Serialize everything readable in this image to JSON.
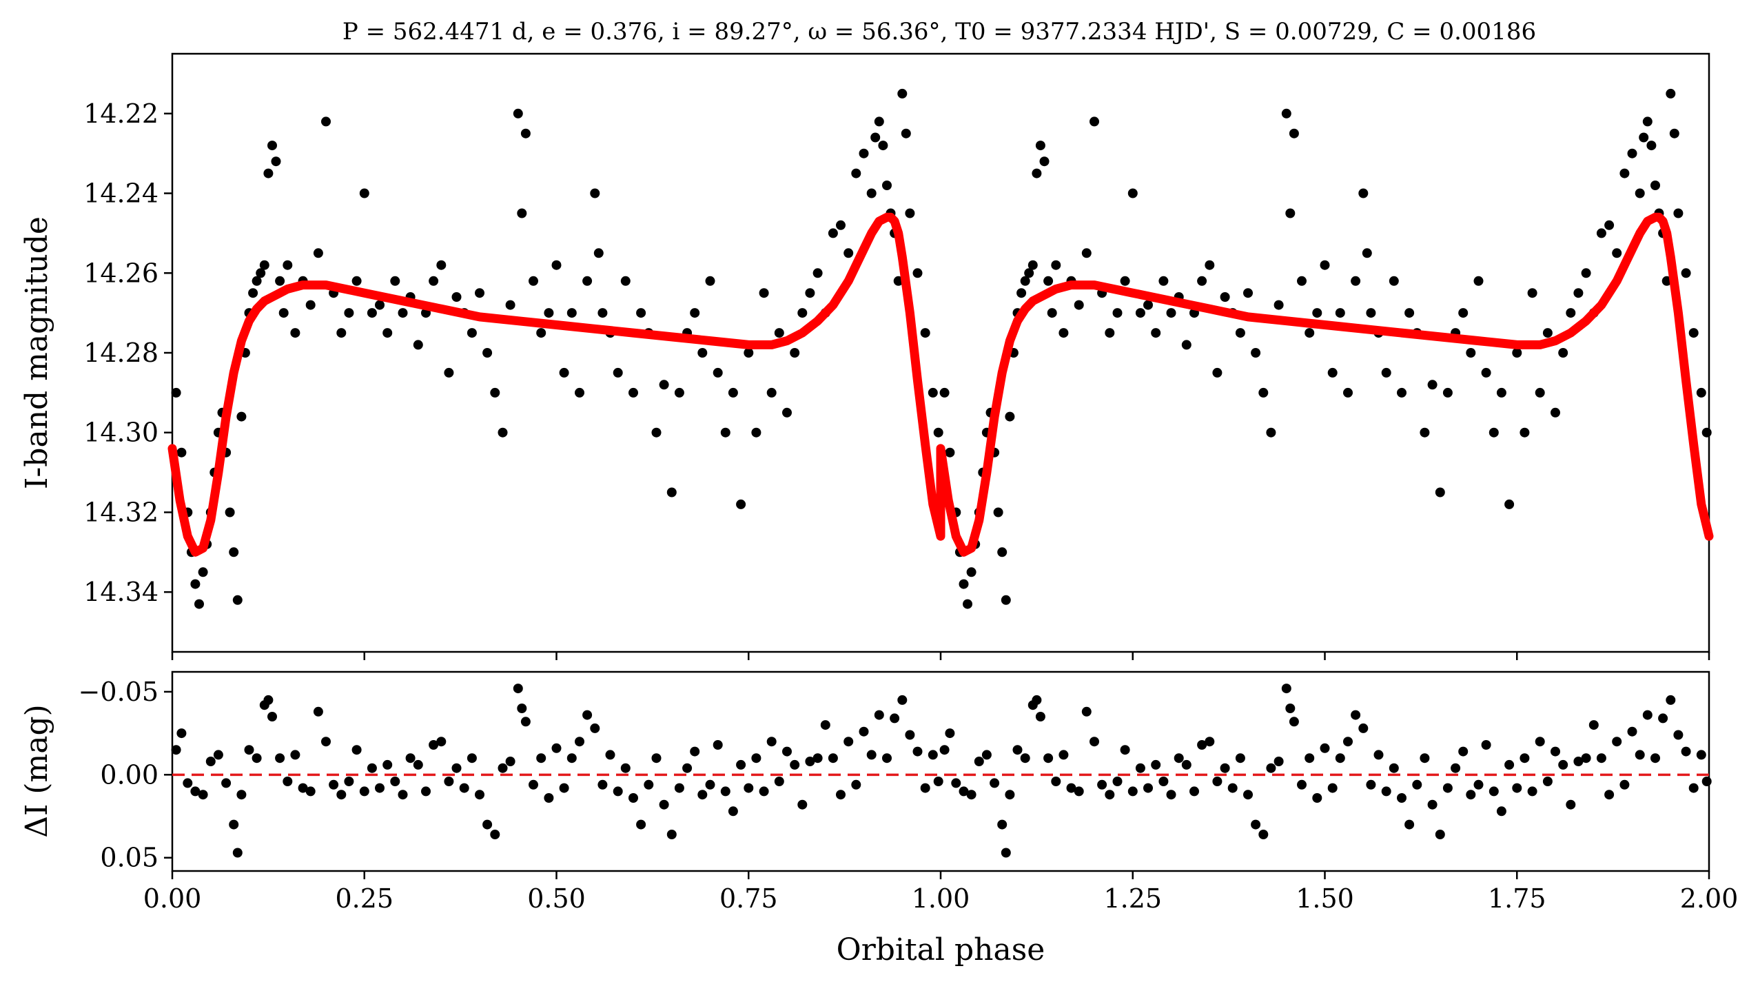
{
  "chart_data": [
    {
      "panel": "light curve",
      "type": "scatter",
      "title": "P = 562.4471 d, e = 0.376, i = 89.27°, ω = 56.36°, T0 = 9377.2334 HJD', S = 0.00729, C = 0.00186",
      "ylabel": "I-band magnitude",
      "xlim": [
        0,
        2
      ],
      "ylim": [
        14.355,
        14.205
      ],
      "y_inverted": true,
      "y_ticks": [
        14.22,
        14.24,
        14.26,
        14.28,
        14.3,
        14.32,
        14.34
      ],
      "y_tick_labels": [
        "14.22",
        "14.24",
        "14.26",
        "14.28",
        "14.30",
        "14.32",
        "14.34"
      ],
      "x_ticks": [
        0,
        0.25,
        0.5,
        0.75,
        1.0,
        1.25,
        1.5,
        1.75,
        2.0
      ],
      "series": [
        {
          "style": "points",
          "color": "#000000",
          "x": [
            0.005,
            0.012,
            0.02,
            0.025,
            0.03,
            0.035,
            0.04,
            0.045,
            0.05,
            0.055,
            0.06,
            0.065,
            0.07,
            0.075,
            0.08,
            0.085,
            0.09,
            0.095,
            0.1,
            0.105,
            0.11,
            0.115,
            0.12,
            0.125,
            0.13,
            0.135,
            0.14,
            0.145,
            0.15,
            0.16,
            0.17,
            0.18,
            0.19,
            0.2,
            0.21,
            0.22,
            0.23,
            0.24,
            0.25,
            0.26,
            0.27,
            0.28,
            0.29,
            0.3,
            0.31,
            0.32,
            0.33,
            0.34,
            0.35,
            0.36,
            0.37,
            0.38,
            0.39,
            0.4,
            0.41,
            0.42,
            0.43,
            0.44,
            0.45,
            0.455,
            0.46,
            0.47,
            0.48,
            0.49,
            0.5,
            0.51,
            0.52,
            0.53,
            0.54,
            0.55,
            0.555,
            0.56,
            0.57,
            0.58,
            0.59,
            0.6,
            0.61,
            0.62,
            0.63,
            0.64,
            0.65,
            0.66,
            0.67,
            0.68,
            0.69,
            0.7,
            0.71,
            0.72,
            0.73,
            0.74,
            0.75,
            0.76,
            0.77,
            0.78,
            0.79,
            0.8,
            0.81,
            0.82,
            0.83,
            0.84,
            0.85,
            0.86,
            0.87,
            0.88,
            0.89,
            0.9,
            0.91,
            0.915,
            0.92,
            0.925,
            0.93,
            0.935,
            0.94,
            0.945,
            0.95,
            0.955,
            0.96,
            0.97,
            0.98,
            0.99,
            0.997
          ],
          "y": [
            14.29,
            14.305,
            14.32,
            14.33,
            14.338,
            14.343,
            14.335,
            14.328,
            14.32,
            14.31,
            14.3,
            14.295,
            14.305,
            14.32,
            14.33,
            14.342,
            14.296,
            14.28,
            14.27,
            14.265,
            14.262,
            14.26,
            14.258,
            14.235,
            14.228,
            14.232,
            14.262,
            14.27,
            14.258,
            14.275,
            14.262,
            14.268,
            14.255,
            14.222,
            14.265,
            14.275,
            14.27,
            14.262,
            14.24,
            14.27,
            14.268,
            14.275,
            14.262,
            14.27,
            14.266,
            14.278,
            14.27,
            14.262,
            14.258,
            14.285,
            14.266,
            14.27,
            14.275,
            14.265,
            14.28,
            14.29,
            14.3,
            14.268,
            14.22,
            14.245,
            14.225,
            14.262,
            14.275,
            14.27,
            14.258,
            14.285,
            14.27,
            14.29,
            14.262,
            14.24,
            14.255,
            14.27,
            14.275,
            14.285,
            14.262,
            14.29,
            14.27,
            14.275,
            14.3,
            14.288,
            14.315,
            14.29,
            14.275,
            14.27,
            14.28,
            14.262,
            14.285,
            14.3,
            14.29,
            14.318,
            14.28,
            14.3,
            14.265,
            14.29,
            14.275,
            14.295,
            14.28,
            14.27,
            14.265,
            14.26,
            14.27,
            14.25,
            14.248,
            14.255,
            14.235,
            14.23,
            14.24,
            14.226,
            14.222,
            14.228,
            14.238,
            14.245,
            14.25,
            14.262,
            14.215,
            14.225,
            14.245,
            14.26,
            14.275,
            14.29,
            14.3
          ]
        },
        {
          "name": "",
          "style": "line",
          "color": "#ff0000",
          "x": [
            0.0,
            0.01,
            0.02,
            0.03,
            0.04,
            0.05,
            0.06,
            0.07,
            0.08,
            0.09,
            0.1,
            0.11,
            0.12,
            0.13,
            0.14,
            0.15,
            0.17,
            0.2,
            0.25,
            0.3,
            0.35,
            0.4,
            0.45,
            0.5,
            0.55,
            0.6,
            0.65,
            0.7,
            0.75,
            0.78,
            0.8,
            0.82,
            0.84,
            0.86,
            0.88,
            0.9,
            0.91,
            0.92,
            0.93,
            0.935,
            0.94,
            0.945,
            0.95,
            0.96,
            0.97,
            0.98,
            0.99,
            1.0
          ],
          "y": [
            14.304,
            14.317,
            14.326,
            14.33,
            14.329,
            14.322,
            14.31,
            14.296,
            14.285,
            14.277,
            14.272,
            14.269,
            14.267,
            14.266,
            14.265,
            14.264,
            14.263,
            14.263,
            14.265,
            14.267,
            14.269,
            14.271,
            14.272,
            14.273,
            14.274,
            14.275,
            14.276,
            14.277,
            14.278,
            14.278,
            14.277,
            14.275,
            14.272,
            14.268,
            14.262,
            14.254,
            14.25,
            14.247,
            14.246,
            14.246,
            14.247,
            14.25,
            14.256,
            14.27,
            14.287,
            14.303,
            14.318,
            14.326
          ]
        }
      ]
    },
    {
      "panel": "residuals",
      "type": "scatter",
      "xlabel": "Orbital phase",
      "ylabel": "ΔI (mag)",
      "xlim": [
        0,
        2
      ],
      "ylim": [
        0.058,
        -0.062
      ],
      "y_inverted": true,
      "y_ticks": [
        -0.05,
        0.0,
        0.05
      ],
      "y_tick_labels": [
        "−0.05",
        "0.00",
        "0.05"
      ],
      "x_ticks": [
        0,
        0.25,
        0.5,
        0.75,
        1.0,
        1.25,
        1.5,
        1.75,
        2.0
      ],
      "x_tick_labels": [
        "0.00",
        "0.25",
        "0.50",
        "0.75",
        "1.00",
        "1.25",
        "1.50",
        "1.75",
        "2.00"
      ],
      "reference_line": {
        "y": 0.0,
        "color": "#e31a1c",
        "style": "dashed"
      },
      "series": [
        {
          "style": "points",
          "color": "#000000",
          "x": [
            0.005,
            0.012,
            0.02,
            0.03,
            0.04,
            0.05,
            0.06,
            0.07,
            0.08,
            0.085,
            0.09,
            0.1,
            0.11,
            0.12,
            0.125,
            0.13,
            0.14,
            0.15,
            0.16,
            0.17,
            0.18,
            0.19,
            0.2,
            0.21,
            0.22,
            0.23,
            0.24,
            0.25,
            0.26,
            0.27,
            0.28,
            0.29,
            0.3,
            0.31,
            0.32,
            0.33,
            0.34,
            0.35,
            0.36,
            0.37,
            0.38,
            0.39,
            0.4,
            0.41,
            0.42,
            0.43,
            0.44,
            0.45,
            0.455,
            0.46,
            0.47,
            0.48,
            0.49,
            0.5,
            0.51,
            0.52,
            0.53,
            0.54,
            0.55,
            0.56,
            0.57,
            0.58,
            0.59,
            0.6,
            0.61,
            0.62,
            0.63,
            0.64,
            0.65,
            0.66,
            0.67,
            0.68,
            0.69,
            0.7,
            0.71,
            0.72,
            0.73,
            0.74,
            0.75,
            0.76,
            0.77,
            0.78,
            0.79,
            0.8,
            0.81,
            0.82,
            0.83,
            0.84,
            0.85,
            0.86,
            0.87,
            0.88,
            0.89,
            0.9,
            0.91,
            0.92,
            0.93,
            0.94,
            0.95,
            0.96,
            0.97,
            0.98,
            0.99,
            0.997
          ],
          "y": [
            -0.015,
            -0.025,
            0.005,
            0.01,
            0.012,
            -0.008,
            -0.012,
            0.005,
            0.03,
            0.047,
            0.012,
            -0.015,
            -0.01,
            -0.042,
            -0.045,
            -0.035,
            -0.01,
            0.004,
            -0.012,
            0.008,
            0.01,
            -0.038,
            -0.02,
            0.006,
            0.012,
            0.004,
            -0.015,
            0.01,
            -0.004,
            0.008,
            -0.006,
            0.004,
            0.012,
            -0.01,
            -0.006,
            0.01,
            -0.018,
            -0.02,
            0.004,
            -0.004,
            0.008,
            -0.01,
            0.012,
            0.03,
            0.036,
            -0.004,
            -0.008,
            -0.052,
            -0.04,
            -0.032,
            0.006,
            -0.01,
            0.014,
            -0.016,
            0.008,
            -0.01,
            -0.02,
            -0.036,
            -0.028,
            0.006,
            -0.012,
            0.01,
            -0.004,
            0.014,
            0.03,
            0.006,
            -0.01,
            0.018,
            0.036,
            0.008,
            -0.004,
            -0.014,
            0.012,
            0.006,
            -0.018,
            0.01,
            0.022,
            -0.006,
            0.008,
            -0.01,
            0.01,
            -0.02,
            0.004,
            -0.014,
            -0.006,
            0.018,
            -0.008,
            -0.01,
            -0.03,
            -0.01,
            0.012,
            -0.02,
            0.006,
            -0.026,
            -0.012,
            -0.036,
            -0.01,
            -0.034,
            -0.045,
            -0.024,
            -0.014,
            0.008,
            -0.012,
            0.004
          ]
        }
      ]
    }
  ]
}
